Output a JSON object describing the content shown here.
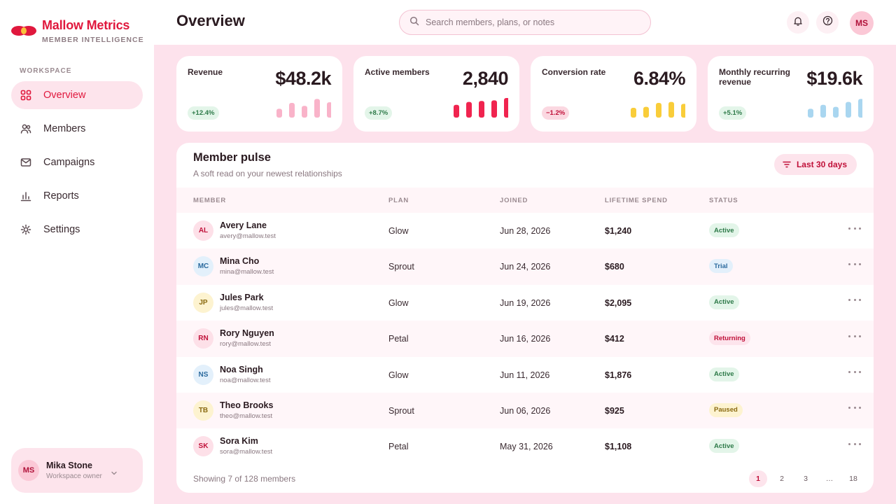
{
  "brand": {
    "name": "Mallow Metrics",
    "subtitle": "MEMBER INTELLIGENCE"
  },
  "sidebar": {
    "section_label": "WORKSPACE",
    "items": [
      {
        "label": "Overview",
        "icon": "grid-icon",
        "active": true
      },
      {
        "label": "Members",
        "icon": "users-icon"
      },
      {
        "label": "Campaigns",
        "icon": "mail-icon"
      },
      {
        "label": "Reports",
        "icon": "bar-chart-icon"
      },
      {
        "label": "Settings",
        "icon": "gear-icon"
      }
    ],
    "user": {
      "initials": "MS",
      "name": "Mika Stone",
      "role": "Workspace owner"
    }
  },
  "header": {
    "title": "Overview",
    "search_placeholder": "Search members, plans, or notes",
    "avatar_initials": "MS"
  },
  "metrics": [
    {
      "label": "Revenue",
      "value": "$48.2k",
      "delta": "+12.4%",
      "trend": "up",
      "color": "#f9b3c9",
      "bars": [
        0.45,
        0.75,
        0.6,
        0.95,
        0.78
      ]
    },
    {
      "label": "Active members",
      "value": "2,840",
      "delta": "+8.7%",
      "trend": "up",
      "color": "#f0244f",
      "bars": [
        0.65,
        0.8,
        0.85,
        0.88,
        1.0
      ]
    },
    {
      "label": "Conversion rate",
      "value": "6.84%",
      "delta": "−1.2%",
      "trend": "down",
      "color": "#f9cd3a",
      "bars": [
        0.5,
        0.55,
        0.75,
        0.8,
        0.7
      ]
    },
    {
      "label": "Monthly recurring revenue",
      "value": "$19.6k",
      "delta": "+5.1%",
      "trend": "up",
      "color": "#a9d6f0",
      "bars": [
        0.45,
        0.65,
        0.55,
        0.8,
        0.95
      ]
    }
  ],
  "table": {
    "title": "Member pulse",
    "subtitle": "A soft read on your newest relationships",
    "filter_label": "Last 30 days",
    "columns": {
      "member": "MEMBER",
      "plan": "PLAN",
      "joined": "JOINED",
      "spend": "LIFETIME SPEND",
      "status": "STATUS"
    },
    "rows": [
      {
        "initials": "AL",
        "avatar": "pink",
        "name": "Avery Lane",
        "email": "avery@mallow.test",
        "plan": "Glow",
        "joined": "Jun 28, 2026",
        "spend": "$1,240",
        "status": "Active",
        "status_style": "active"
      },
      {
        "initials": "MC",
        "avatar": "blue",
        "name": "Mina Cho",
        "email": "mina@mallow.test",
        "plan": "Sprout",
        "joined": "Jun 24, 2026",
        "spend": "$680",
        "status": "Trial",
        "status_style": "trial"
      },
      {
        "initials": "JP",
        "avatar": "yellow",
        "name": "Jules Park",
        "email": "jules@mallow.test",
        "plan": "Glow",
        "joined": "Jun 19, 2026",
        "spend": "$2,095",
        "status": "Active",
        "status_style": "active"
      },
      {
        "initials": "RN",
        "avatar": "pink",
        "name": "Rory Nguyen",
        "email": "rory@mallow.test",
        "plan": "Petal",
        "joined": "Jun 16, 2026",
        "spend": "$412",
        "status": "Returning",
        "status_style": "returning"
      },
      {
        "initials": "NS",
        "avatar": "blue",
        "name": "Noa Singh",
        "email": "noa@mallow.test",
        "plan": "Glow",
        "joined": "Jun 11, 2026",
        "spend": "$1,876",
        "status": "Active",
        "status_style": "active"
      },
      {
        "initials": "TB",
        "avatar": "yellow",
        "name": "Theo Brooks",
        "email": "theo@mallow.test",
        "plan": "Sprout",
        "joined": "Jun 06, 2026",
        "spend": "$925",
        "status": "Paused",
        "status_style": "paused"
      },
      {
        "initials": "SK",
        "avatar": "pink",
        "name": "Sora Kim",
        "email": "sora@mallow.test",
        "plan": "Petal",
        "joined": "May 31, 2026",
        "spend": "$1,108",
        "status": "Active",
        "status_style": "active"
      }
    ],
    "footer": "Showing 7 of 128 members",
    "pages": [
      "1",
      "2",
      "3",
      "…",
      "18"
    ],
    "current_page": "1"
  }
}
